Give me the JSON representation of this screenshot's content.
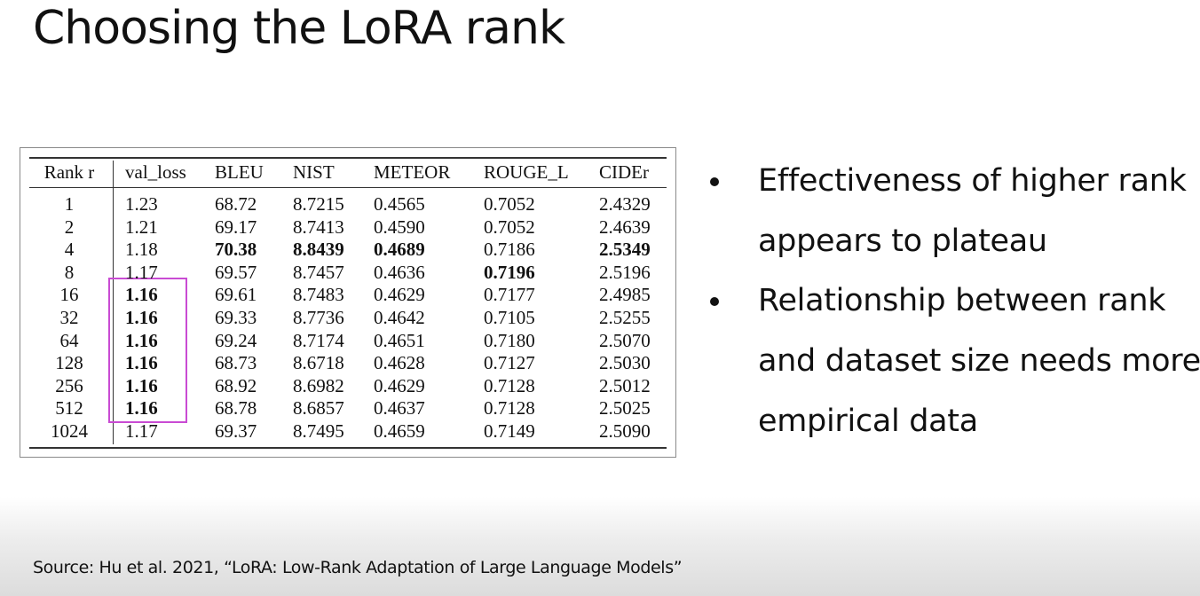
{
  "title": "Choosing the LoRA rank",
  "table": {
    "headers": [
      "Rank r",
      "val_loss",
      "BLEU",
      "NIST",
      "METEOR",
      "ROUGE_L",
      "CIDEr"
    ],
    "rows": [
      [
        "1",
        "1.23",
        "68.72",
        "8.7215",
        "0.4565",
        "0.7052",
        "2.4329"
      ],
      [
        "2",
        "1.21",
        "69.17",
        "8.7413",
        "0.4590",
        "0.7052",
        "2.4639"
      ],
      [
        "4",
        "1.18",
        "70.38",
        "8.8439",
        "0.4689",
        "0.7186",
        "2.5349"
      ],
      [
        "8",
        "1.17",
        "69.57",
        "8.7457",
        "0.4636",
        "0.7196",
        "2.5196"
      ],
      [
        "16",
        "1.16",
        "69.61",
        "8.7483",
        "0.4629",
        "0.7177",
        "2.4985"
      ],
      [
        "32",
        "1.16",
        "69.33",
        "8.7736",
        "0.4642",
        "0.7105",
        "2.5255"
      ],
      [
        "64",
        "1.16",
        "69.24",
        "8.7174",
        "0.4651",
        "0.7180",
        "2.5070"
      ],
      [
        "128",
        "1.16",
        "68.73",
        "8.6718",
        "0.4628",
        "0.7127",
        "2.5030"
      ],
      [
        "256",
        "1.16",
        "68.92",
        "8.6982",
        "0.4629",
        "0.7128",
        "2.5012"
      ],
      [
        "512",
        "1.16",
        "68.78",
        "8.6857",
        "0.4637",
        "0.7128",
        "2.5025"
      ],
      [
        "1024",
        "1.17",
        "69.37",
        "8.7495",
        "0.4659",
        "0.7149",
        "2.5090"
      ]
    ]
  },
  "bullets": [
    {
      "line1": "Effectiveness of higher rank",
      "line2": "appears to plateau"
    },
    {
      "line1": "Relationship between rank",
      "line2": "and dataset size needs more",
      "line3": "empirical data"
    }
  ],
  "source": "Source:  Hu et al. 2021, “LoRA: Low-Rank Adaptation of Large Language Models”",
  "colors": {
    "highlight": "#c94bd3"
  }
}
